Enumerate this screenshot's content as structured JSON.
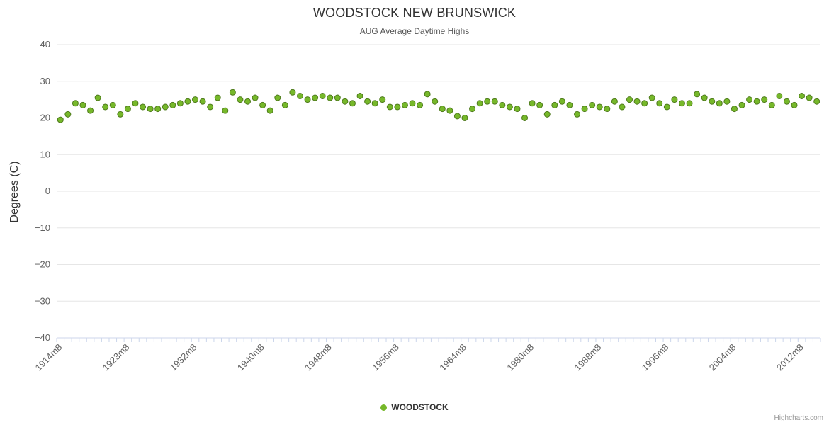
{
  "chart_data": {
    "type": "scatter",
    "title": "WOODSTOCK NEW BRUNSWICK",
    "subtitle": "AUG Average Daytime Highs",
    "ylabel": "Degrees (C)",
    "ylim": [
      -40,
      40
    ],
    "y_tick_step": 10,
    "y_tick_labels": [
      "40",
      "30",
      "20",
      "10",
      "0",
      "−10",
      "−20",
      "−30",
      "−40"
    ],
    "x_tick_labels": [
      "1914m8",
      "1923m8",
      "1932m8",
      "1940m8",
      "1948m8",
      "1956m8",
      "1964m8",
      "1980m8",
      "1988m8",
      "1996m8",
      "2004m8",
      "2012m8"
    ],
    "x_tick_every": 9,
    "grid": true,
    "legend_position": "bottom-center",
    "series": [
      {
        "name": "WOODSTOCK",
        "color": "#76b82a",
        "marker_stroke": "#4e7a1c",
        "values": [
          19.5,
          21,
          24,
          23.5,
          22,
          25.5,
          23,
          23.5,
          21,
          22.5,
          24,
          23,
          22.5,
          22.5,
          23,
          23.5,
          24,
          24.5,
          25,
          24.5,
          23,
          25.5,
          22,
          27,
          25,
          24.5,
          25.5,
          23.5,
          22,
          25.5,
          23.5,
          27,
          26,
          25,
          25.5,
          26,
          25.5,
          25.5,
          24.5,
          24,
          26,
          24.5,
          24,
          25,
          23,
          23,
          23.5,
          24,
          23.5,
          26.5,
          24.5,
          22.5,
          22,
          20.5,
          20,
          22.5,
          24,
          24.5,
          24.5,
          23.5,
          23,
          22.5,
          20,
          24,
          23.5,
          21,
          23.5,
          24.5,
          23.5,
          21,
          22.5,
          23.5,
          23,
          22.5,
          24.5,
          23,
          25,
          24.5,
          24,
          25.5,
          24,
          23,
          25,
          24,
          24,
          26.5,
          25.5,
          24.5,
          24,
          24.5,
          22.5,
          23.5,
          25,
          24.5,
          25,
          23.5,
          26,
          24.5,
          23.5,
          26,
          25.5,
          24.5
        ]
      }
    ],
    "credits": "Highcharts.com"
  },
  "colors": {
    "grid_line": "#e6e6e6",
    "axis_line": "#ccd6eb",
    "tick_mark": "#ccd6eb",
    "axis_label": "#606060",
    "title": "#333333",
    "subtitle": "#555555"
  }
}
